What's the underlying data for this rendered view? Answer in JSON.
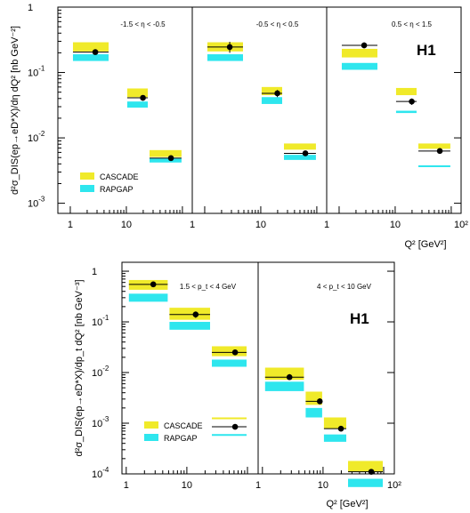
{
  "colors": {
    "cascade": "#f0ea2a",
    "rapgap": "#2ee6ee",
    "data": "#000000"
  },
  "icons": [
    "data-point-marker",
    "legend-swatch-cascade",
    "legend-swatch-rapgap"
  ],
  "chart_data": [
    {
      "type": "scatter",
      "logo": "H1",
      "ylabel": "d²σ_DIS(ep→eD*X)/dη dQ² [nb GeV⁻²]",
      "xlabel": "Q² [GeV²]",
      "yscale": "log",
      "ylim": [
        0.0007,
        1
      ],
      "yticks": [
        {
          "base": "10",
          "exp": "-3"
        },
        {
          "base": "10",
          "exp": "-2"
        },
        {
          "base": "10",
          "exp": "-1"
        },
        {
          "base": "1",
          "exp": ""
        }
      ],
      "legend": [
        {
          "label": "CASCADE",
          "color": "#f0ea2a"
        },
        {
          "label": "RAPGAP",
          "color": "#2ee6ee"
        }
      ],
      "panels": [
        {
          "header": [
            "-1.5",
            "η",
            "-0.5"
          ],
          "xticks": [
            "1",
            "10"
          ],
          "bins": [
            {
              "q2": [
                1,
                5
              ],
              "data": 0.205,
              "err_hi": 0.222,
              "err_lo": 0.192,
              "cascade": [
                0.21,
                0.29
              ],
              "rapgap": [
                0.15,
                0.19
              ]
            },
            {
              "q2": [
                10,
                25
              ],
              "data": 0.041,
              "err_hi": 0.045,
              "err_lo": 0.037,
              "cascade": [
                0.042,
                0.057
              ],
              "rapgap": [
                0.029,
                0.036
              ]
            },
            {
              "q2": [
                25,
                100
              ],
              "data": 0.0049,
              "err_hi": 0.0052,
              "err_lo": 0.0046,
              "cascade": [
                0.0051,
                0.0065
              ],
              "rapgap": [
                0.0042,
                0.0049
              ]
            }
          ]
        },
        {
          "header": [
            "-0.5",
            "η",
            "0.5"
          ],
          "xticks": [
            "1",
            "10"
          ],
          "bins": [
            {
              "q2": [
                1,
                5
              ],
              "data": 0.245,
              "err_hi": 0.295,
              "err_lo": 0.2,
              "cascade": [
                0.21,
                0.29
              ],
              "rapgap": [
                0.15,
                0.19
              ]
            },
            {
              "q2": [
                10,
                25
              ],
              "data": 0.048,
              "err_hi": 0.054,
              "err_lo": 0.042,
              "cascade": [
                0.045,
                0.06
              ],
              "rapgap": [
                0.033,
                0.042
              ]
            },
            {
              "q2": [
                25,
                100
              ],
              "data": 0.0058,
              "err_hi": 0.0063,
              "err_lo": 0.0053,
              "cascade": [
                0.0066,
                0.0082
              ],
              "rapgap": [
                0.0046,
                0.0055
              ]
            }
          ]
        },
        {
          "header": [
            "0.5",
            "η",
            "1.5"
          ],
          "xticks": [
            "1",
            "10",
            "10²"
          ],
          "bins": [
            {
              "q2": [
                1,
                5
              ],
              "data": 0.26,
              "err_hi": 0.29,
              "err_lo": 0.235,
              "cascade": [
                0.17,
                0.23
              ],
              "rapgap": [
                0.11,
                0.14
              ]
            },
            {
              "q2": [
                10,
                25
              ],
              "data": 0.036,
              "err_hi": 0.04,
              "err_lo": 0.032,
              "cascade": [
                0.045,
                0.058
              ],
              "rapgap": [
                0.024,
                0.026
              ]
            },
            {
              "q2": [
                25,
                100
              ],
              "data": 0.0063,
              "err_hi": 0.0068,
              "err_lo": 0.0058,
              "cascade": [
                0.0068,
                0.0082
              ],
              "rapgap": [
                0.0036,
                0.0038
              ]
            }
          ]
        }
      ]
    },
    {
      "type": "scatter",
      "logo": "H1",
      "ylabel": "d²σ_DIS(ep→eD*X)/dp_t dQ² [nb GeV⁻³]",
      "xlabel": "Q² [GeV²]",
      "yscale": "log",
      "ylim": [
        0.0001,
        1.5
      ],
      "yticks": [
        {
          "base": "10",
          "exp": "-4"
        },
        {
          "base": "10",
          "exp": "-3"
        },
        {
          "base": "10",
          "exp": "-2"
        },
        {
          "base": "10",
          "exp": "-1"
        },
        {
          "base": "1",
          "exp": ""
        }
      ],
      "legend": [
        {
          "label": "CASCADE",
          "color": "#f0ea2a"
        },
        {
          "label": "RAPGAP",
          "color": "#2ee6ee"
        }
      ],
      "panels": [
        {
          "header": [
            "1.5",
            "p_t",
            "4 GeV"
          ],
          "xticks": [
            "1",
            "10"
          ],
          "bins": [
            {
              "q2": [
                1,
                5
              ],
              "data": 0.55,
              "err_hi": 0.62,
              "err_lo": 0.49,
              "cascade": [
                0.43,
                0.67
              ],
              "rapgap": [
                0.25,
                0.36
              ]
            },
            {
              "q2": [
                5,
                25
              ],
              "data": 0.14,
              "err_hi": 0.16,
              "err_lo": 0.12,
              "cascade": [
                0.11,
                0.19
              ],
              "rapgap": [
                0.07,
                0.1
              ]
            },
            {
              "q2": [
                25,
                100
              ],
              "data": 0.025,
              "err_hi": 0.027,
              "err_lo": 0.023,
              "cascade": [
                0.021,
                0.033
              ],
              "rapgap": [
                0.013,
                0.018
              ]
            },
            {
              "q2": [
                25,
                100
              ],
              "data": 0.00085,
              "err_hi": 0.0009,
              "err_lo": 0.0008,
              "cascade": [
                0.00125,
                0.0013
              ],
              "rapgap": [
                0.00058,
                0.00061
              ]
            }
          ]
        },
        {
          "header": [
            "4",
            "p_t",
            "10 GeV"
          ],
          "xticks": [
            "1",
            "10",
            "10²"
          ],
          "bins": [
            {
              "q2": [
                1,
                5
              ],
              "data": 0.0081,
              "err_hi": 0.0093,
              "err_lo": 0.0071,
              "cascade": [
                0.0072,
                0.0125
              ],
              "rapgap": [
                0.0043,
                0.0066
              ]
            },
            {
              "q2": [
                5,
                10
              ],
              "data": 0.0027,
              "err_hi": 0.0031,
              "err_lo": 0.0024,
              "cascade": [
                0.0023,
                0.0042
              ],
              "rapgap": [
                0.0013,
                0.002
              ]
            },
            {
              "q2": [
                10,
                25
              ],
              "data": 0.00078,
              "err_hi": 0.00084,
              "err_lo": 0.00072,
              "cascade": [
                0.00078,
                0.0013
              ],
              "rapgap": [
                0.00043,
                0.0006
              ]
            },
            {
              "q2": [
                25,
                100
              ],
              "data": 0.00011,
              "err_hi": 0.00012,
              "err_lo": 0.0001,
              "cascade": [
                0.00011,
                0.00018
              ],
              "rapgap": [
                5.5e-05,
                8e-05
              ]
            }
          ]
        }
      ]
    }
  ]
}
